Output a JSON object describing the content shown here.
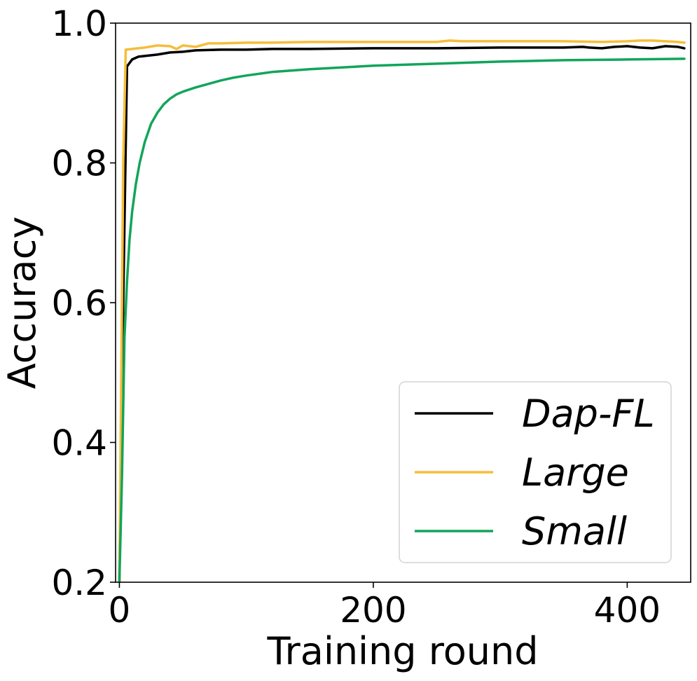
{
  "chart_data": {
    "type": "line",
    "title": "",
    "xlabel": "Training round",
    "ylabel": "Accuracy",
    "xlim": [
      -3,
      450
    ],
    "ylim": [
      0.2,
      1.0
    ],
    "x_ticks": [
      0,
      200,
      400
    ],
    "x_tick_labels": [
      "0",
      "200",
      "400"
    ],
    "y_ticks": [
      0.2,
      0.4,
      0.6,
      0.8,
      1.0
    ],
    "y_tick_labels": [
      "0.2",
      "0.4",
      "0.6",
      "0.8",
      "1.0"
    ],
    "grid": false,
    "legend_position": "lower-right",
    "series": [
      {
        "name": "Dap-FL",
        "color": "#000000",
        "x": [
          0,
          3,
          6,
          10,
          15,
          20,
          30,
          40,
          50,
          60,
          80,
          100,
          120,
          150,
          200,
          250,
          300,
          350,
          365,
          370,
          380,
          390,
          400,
          410,
          420,
          430,
          440,
          445
        ],
        "y": [
          0.2,
          0.6,
          0.938,
          0.948,
          0.952,
          0.953,
          0.955,
          0.958,
          0.959,
          0.961,
          0.962,
          0.962,
          0.963,
          0.963,
          0.964,
          0.964,
          0.965,
          0.965,
          0.966,
          0.965,
          0.964,
          0.966,
          0.967,
          0.965,
          0.964,
          0.967,
          0.966,
          0.964
        ]
      },
      {
        "name": "Large",
        "color": "#f6bd3b",
        "x": [
          0,
          3,
          5,
          10,
          20,
          30,
          40,
          45,
          50,
          60,
          70,
          80,
          100,
          120,
          150,
          200,
          250,
          260,
          270,
          300,
          350,
          380,
          400,
          410,
          420,
          430,
          440,
          445
        ],
        "y": [
          0.2,
          0.8,
          0.962,
          0.963,
          0.965,
          0.968,
          0.967,
          0.963,
          0.968,
          0.966,
          0.971,
          0.971,
          0.972,
          0.972,
          0.973,
          0.973,
          0.973,
          0.975,
          0.974,
          0.974,
          0.974,
          0.973,
          0.974,
          0.975,
          0.975,
          0.974,
          0.973,
          0.972
        ]
      },
      {
        "name": "Small",
        "color": "#12a55a",
        "x": [
          0,
          2,
          4,
          6,
          8,
          10,
          13,
          16,
          20,
          25,
          30,
          35,
          40,
          45,
          50,
          55,
          60,
          70,
          80,
          90,
          100,
          120,
          150,
          200,
          250,
          300,
          350,
          400,
          445
        ],
        "y": [
          0.2,
          0.35,
          0.55,
          0.63,
          0.69,
          0.73,
          0.77,
          0.8,
          0.83,
          0.856,
          0.872,
          0.884,
          0.892,
          0.898,
          0.902,
          0.905,
          0.908,
          0.913,
          0.918,
          0.922,
          0.925,
          0.93,
          0.934,
          0.939,
          0.942,
          0.945,
          0.947,
          0.948,
          0.949
        ]
      }
    ]
  }
}
